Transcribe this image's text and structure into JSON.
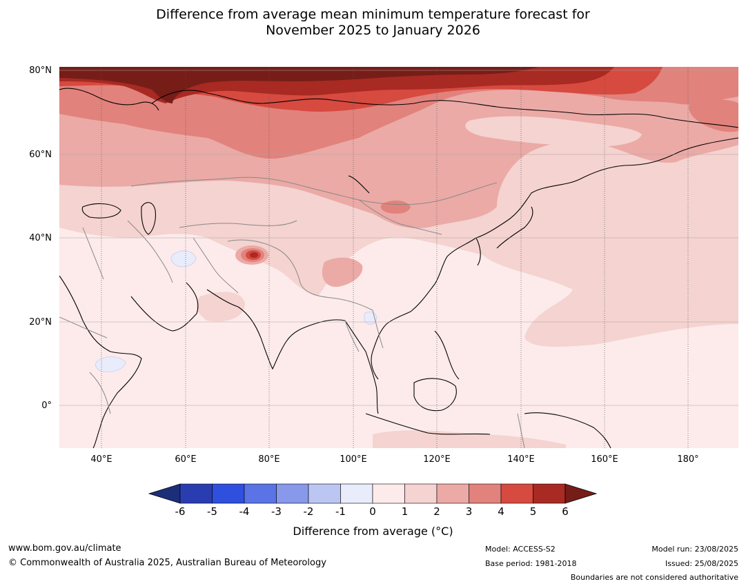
{
  "title_line1": "Difference from average mean minimum temperature forecast for",
  "title_line2": "November 2025 to January 2026",
  "lat_labels": [
    "80°N",
    "60°N",
    "40°N",
    "20°N",
    "0°"
  ],
  "lon_labels": [
    "40°E",
    "60°E",
    "80°E",
    "100°E",
    "120°E",
    "140°E",
    "160°E",
    "180°"
  ],
  "colorbar": {
    "title": "Difference from average (°C)",
    "ticks": [
      "-6",
      "-5",
      "-4",
      "-3",
      "-2",
      "-1",
      "0",
      "1",
      "2",
      "3",
      "4",
      "5",
      "6"
    ],
    "colors": [
      "#1c2e7a",
      "#2a3db0",
      "#2f4fdf",
      "#5a74e6",
      "#8898ea",
      "#bcc6f3",
      "#e8ecfb",
      "#fcebea",
      "#f4d3d0",
      "#ebaaa6",
      "#e2827c",
      "#d64a40",
      "#a82a22",
      "#761d18"
    ]
  },
  "footer": {
    "website": "www.bom.gov.au/climate",
    "copyright": "© Commonwealth of Australia 2025, Australian Bureau of Meteorology",
    "model": "Model: ACCESS-S2",
    "base_period": "Base period: 1981-2018",
    "model_run": "Model run: 23/08/2025",
    "issued": "Issued: 25/08/2025",
    "disclaimer": "Boundaries are not considered authoritative"
  }
}
